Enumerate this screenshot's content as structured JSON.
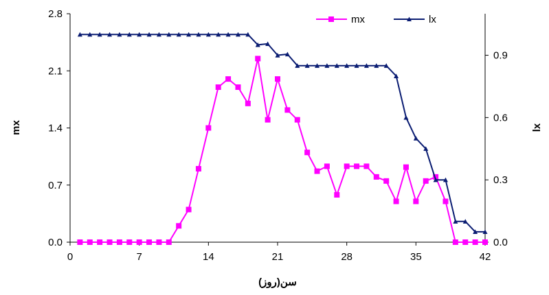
{
  "chart_data": {
    "type": "line",
    "title": "",
    "xlabel": "سن(روز)",
    "ylabel": "mx",
    "y2label": "lx",
    "xlim": [
      0,
      42
    ],
    "ylim": [
      0,
      2.8
    ],
    "y2lim": [
      0,
      1.1
    ],
    "xticks": [
      "0",
      "7",
      "14",
      "21",
      "28",
      "35",
      "42"
    ],
    "yticks": [
      "0.0",
      "0.7",
      "1.4",
      "2.1",
      "2.8"
    ],
    "y2ticks": [
      "0.0",
      "0.3",
      "0.6",
      "0.9"
    ],
    "grid": false,
    "legend_position": "top-right",
    "series": [
      {
        "name": "mx",
        "axis": "left",
        "color": "#FF00FF",
        "marker": "square",
        "x": [
          1,
          2,
          3,
          4,
          5,
          6,
          7,
          8,
          9,
          10,
          11,
          12,
          13,
          14,
          15,
          16,
          17,
          18,
          19,
          20,
          21,
          22,
          23,
          24,
          25,
          26,
          27,
          28,
          29,
          30,
          31,
          32,
          33,
          34,
          35,
          36,
          37,
          38,
          39,
          40,
          41,
          42
        ],
        "values": [
          0,
          0,
          0,
          0,
          0,
          0,
          0,
          0,
          0,
          0,
          0.2,
          0.4,
          0.9,
          1.4,
          1.9,
          2.0,
          1.9,
          1.7,
          2.25,
          1.5,
          2.0,
          1.62,
          1.5,
          1.1,
          0.87,
          0.93,
          0.58,
          0.93,
          0.93,
          0.93,
          0.8,
          0.75,
          0.5,
          0.92,
          0.5,
          0.75,
          0.8,
          0.5,
          0,
          0,
          0,
          0
        ]
      },
      {
        "name": "lx",
        "axis": "right",
        "color": "#0A1C72",
        "marker": "triangle",
        "x": [
          1,
          2,
          3,
          4,
          5,
          6,
          7,
          8,
          9,
          10,
          11,
          12,
          13,
          14,
          15,
          16,
          17,
          18,
          19,
          20,
          21,
          22,
          23,
          24,
          25,
          26,
          27,
          28,
          29,
          30,
          31,
          32,
          33,
          34,
          35,
          36,
          37,
          38,
          39,
          40,
          41,
          42
        ],
        "values": [
          1.0,
          1.0,
          1.0,
          1.0,
          1.0,
          1.0,
          1.0,
          1.0,
          1.0,
          1.0,
          1.0,
          1.0,
          1.0,
          1.0,
          1.0,
          1.0,
          1.0,
          1.0,
          0.95,
          0.955,
          0.9,
          0.905,
          0.85,
          0.85,
          0.85,
          0.85,
          0.85,
          0.85,
          0.85,
          0.85,
          0.85,
          0.85,
          0.8,
          0.6,
          0.5,
          0.45,
          0.3,
          0.3,
          0.1,
          0.1,
          0.05,
          0.05
        ]
      }
    ]
  }
}
